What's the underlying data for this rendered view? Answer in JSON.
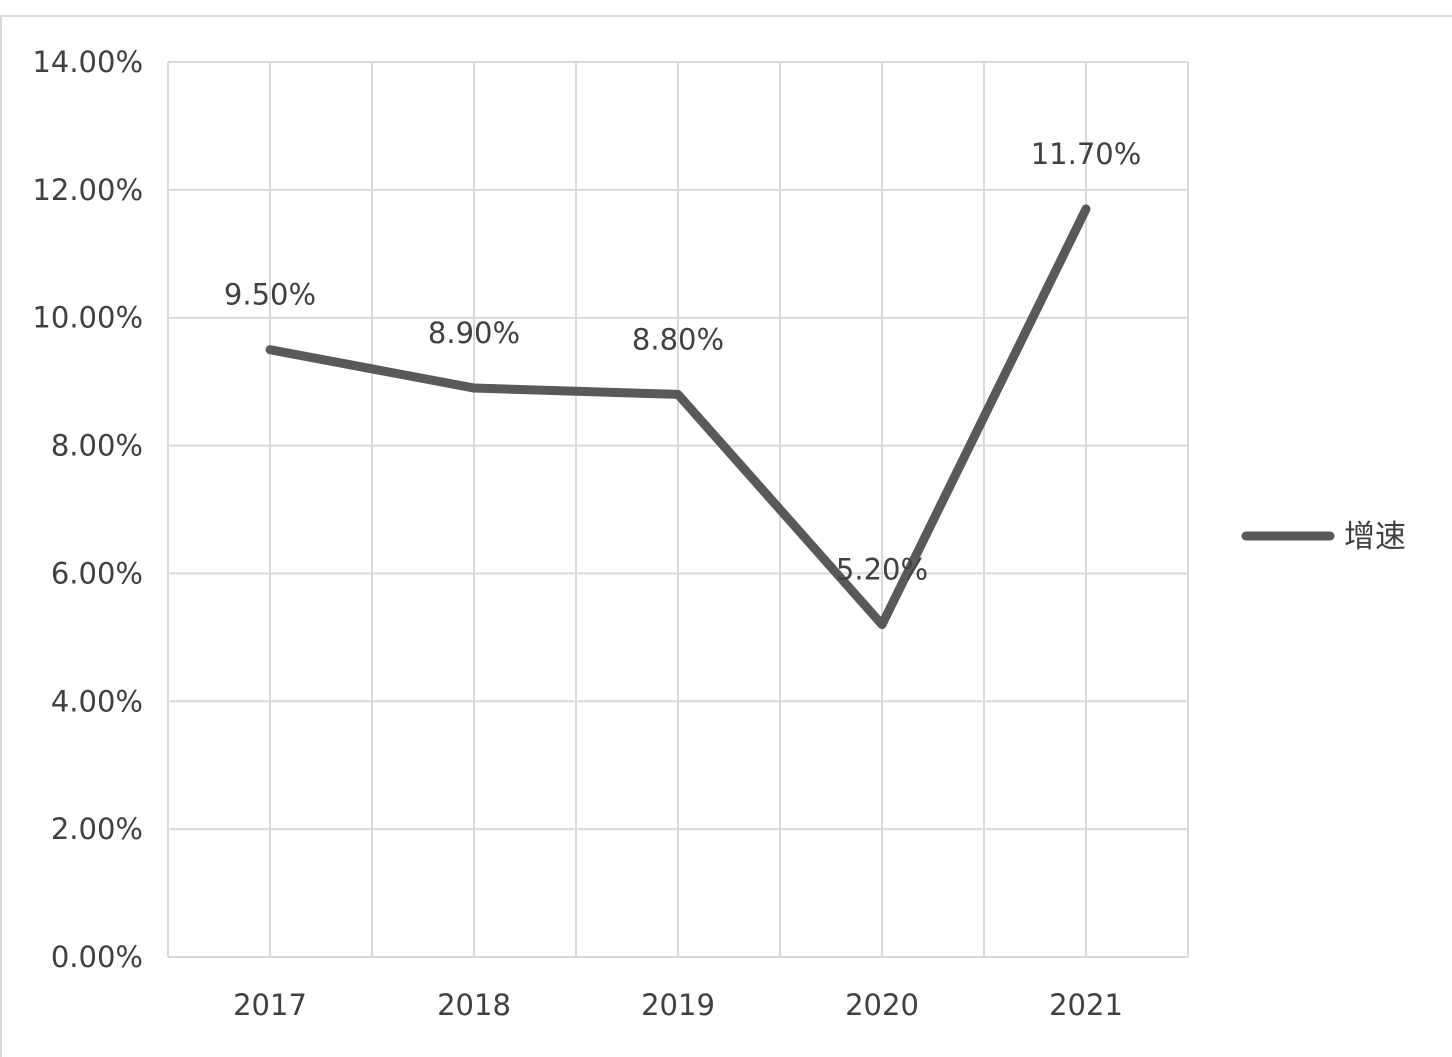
{
  "chart_data": {
    "type": "line",
    "title": "",
    "xlabel": "",
    "ylabel": "",
    "categories": [
      "2017",
      "2018",
      "2019",
      "2020",
      "2021"
    ],
    "series": [
      {
        "name": "增速",
        "values": [
          9.5,
          8.9,
          8.8,
          5.2,
          11.7
        ],
        "labels": [
          "9.50%",
          "8.90%",
          "8.80%",
          "5.20%",
          "11.70%"
        ],
        "color": "#595959"
      }
    ],
    "ylim": [
      0,
      14
    ],
    "yticks": [
      0,
      2,
      4,
      6,
      8,
      10,
      12,
      14
    ],
    "ytick_labels": [
      "0.00%",
      "2.00%",
      "4.00%",
      "6.00%",
      "8.00%",
      "10.00%",
      "12.00%",
      "14.00%"
    ],
    "grid": true,
    "legend_position": "right",
    "colors": {
      "grid": "#d9d9d9",
      "text": "#404040",
      "border": "#d9d9d9"
    }
  }
}
